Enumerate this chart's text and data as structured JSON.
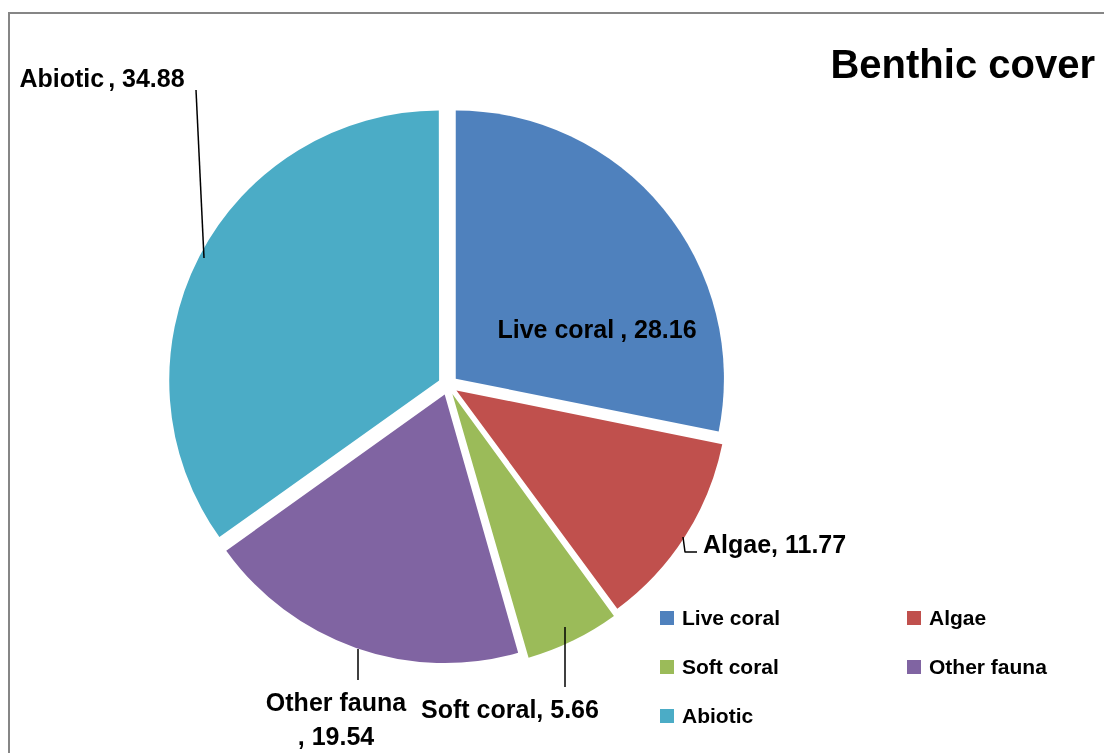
{
  "chart_data": {
    "type": "pie",
    "title": "Benthic cover",
    "categories": [
      "Live coral",
      "Algae",
      "Soft coral",
      "Other fauna",
      "Abiotic"
    ],
    "values": [
      28.16,
      11.77,
      5.66,
      19.54,
      34.88
    ],
    "value_labels": [
      ", 28.16",
      ", 11.77",
      ", 5.66",
      ", 19.54",
      ", 34.88"
    ],
    "colors": [
      "#4f81bd",
      "#c0504d",
      "#9bbb59",
      "#8064a2",
      "#4bacc6"
    ],
    "legend": "bottom right"
  }
}
